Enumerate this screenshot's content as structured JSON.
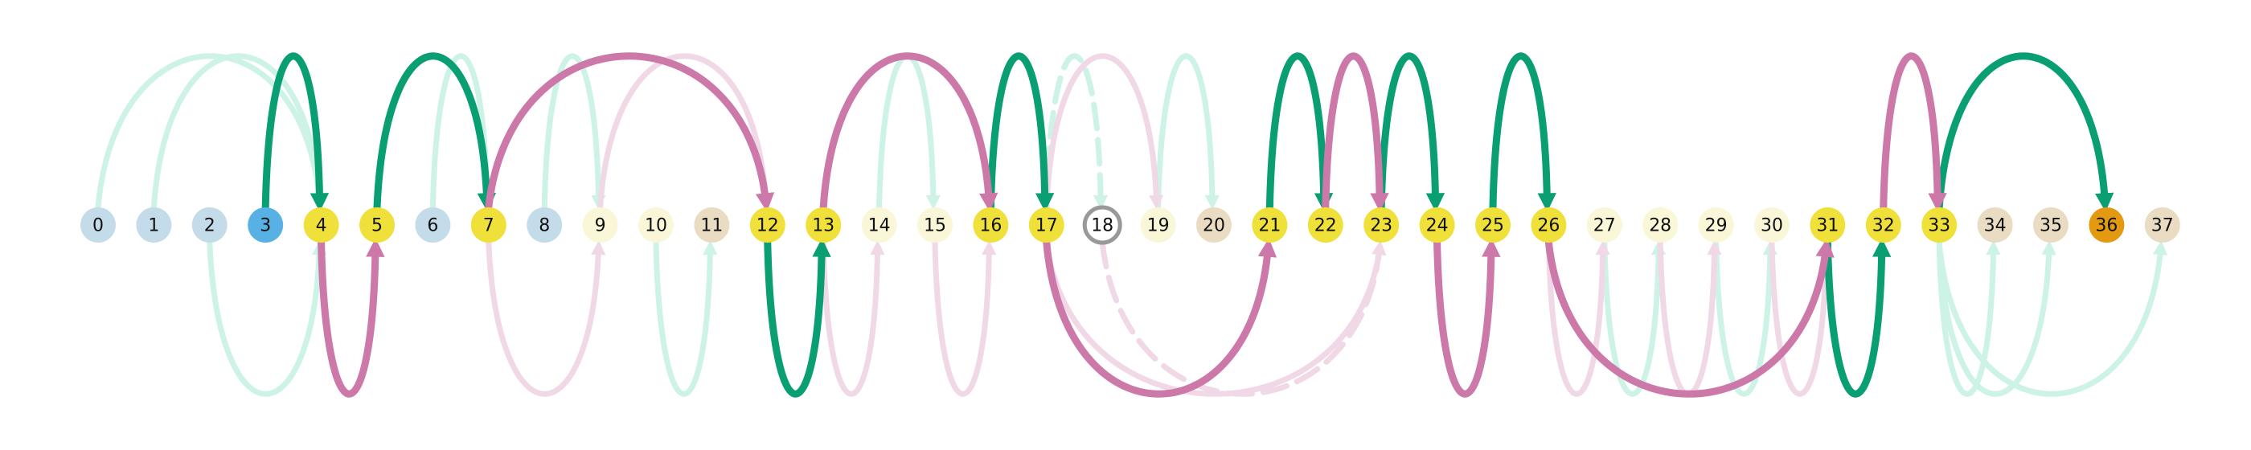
{
  "diagram": {
    "nodes": [
      {
        "label": "0",
        "fill": "#c4dcea"
      },
      {
        "label": "1",
        "fill": "#c4dcea"
      },
      {
        "label": "2",
        "fill": "#c4dcea"
      },
      {
        "label": "3",
        "fill": "#58b1e4"
      },
      {
        "label": "4",
        "fill": "#f0e03a"
      },
      {
        "label": "5",
        "fill": "#f0e03a"
      },
      {
        "label": "6",
        "fill": "#c4dcea"
      },
      {
        "label": "7",
        "fill": "#f0e03a"
      },
      {
        "label": "8",
        "fill": "#c4dcea"
      },
      {
        "label": "9",
        "fill": "#faf6d8"
      },
      {
        "label": "10",
        "fill": "#faf6d8"
      },
      {
        "label": "11",
        "fill": "#eadcc2"
      },
      {
        "label": "12",
        "fill": "#f0e03a"
      },
      {
        "label": "13",
        "fill": "#f0e03a"
      },
      {
        "label": "14",
        "fill": "#faf6d8"
      },
      {
        "label": "15",
        "fill": "#faf6d8"
      },
      {
        "label": "16",
        "fill": "#f0e03a"
      },
      {
        "label": "17",
        "fill": "#f0e03a"
      },
      {
        "label": "18",
        "fill": "#ffffff",
        "stroke": "#999999"
      },
      {
        "label": "19",
        "fill": "#faf6d8"
      },
      {
        "label": "20",
        "fill": "#eadcc2"
      },
      {
        "label": "21",
        "fill": "#f0e03a"
      },
      {
        "label": "22",
        "fill": "#f0e03a"
      },
      {
        "label": "23",
        "fill": "#f0e03a"
      },
      {
        "label": "24",
        "fill": "#f0e03a"
      },
      {
        "label": "25",
        "fill": "#f0e03a"
      },
      {
        "label": "26",
        "fill": "#f0e03a"
      },
      {
        "label": "27",
        "fill": "#faf6d8"
      },
      {
        "label": "28",
        "fill": "#faf6d8"
      },
      {
        "label": "29",
        "fill": "#faf6d8"
      },
      {
        "label": "30",
        "fill": "#faf6d8"
      },
      {
        "label": "31",
        "fill": "#f0e03a"
      },
      {
        "label": "32",
        "fill": "#f0e03a"
      },
      {
        "label": "33",
        "fill": "#f0e03a"
      },
      {
        "label": "34",
        "fill": "#eadcc2"
      },
      {
        "label": "35",
        "fill": "#eadcc2"
      },
      {
        "label": "36",
        "fill": "#e39a10"
      },
      {
        "label": "37",
        "fill": "#eadcc2"
      }
    ],
    "colors": {
      "green": "#0a9e73",
      "pink": "#cc78a8",
      "light_green": "#cdf2e6",
      "light_pink": "#f0d8e6"
    },
    "edges": [
      {
        "from": 0,
        "to": 4,
        "side": "top",
        "style": "light_green"
      },
      {
        "from": 1,
        "to": 4,
        "side": "top",
        "style": "light_green"
      },
      {
        "from": 2,
        "to": 4,
        "side": "bottom",
        "style": "light_green"
      },
      {
        "from": 6,
        "to": 7,
        "side": "top",
        "style": "light_green"
      },
      {
        "from": 8,
        "to": 9,
        "side": "top",
        "style": "light_green"
      },
      {
        "from": 10,
        "to": 11,
        "side": "bottom",
        "style": "light_green"
      },
      {
        "from": 14,
        "to": 15,
        "side": "top",
        "style": "light_green"
      },
      {
        "from": 17,
        "to": 18,
        "side": "top",
        "style": "light_green",
        "dashed": true
      },
      {
        "from": 19,
        "to": 20,
        "side": "top",
        "style": "light_green"
      },
      {
        "from": 27,
        "to": 28,
        "side": "bottom",
        "style": "light_green"
      },
      {
        "from": 29,
        "to": 30,
        "side": "bottom",
        "style": "light_green"
      },
      {
        "from": 33,
        "to": 34,
        "side": "bottom",
        "style": "light_green"
      },
      {
        "from": 33,
        "to": 35,
        "side": "bottom",
        "style": "light_green"
      },
      {
        "from": 33,
        "to": 37,
        "side": "bottom",
        "style": "light_green"
      },
      {
        "from": 7,
        "to": 9,
        "side": "bottom",
        "style": "light_pink"
      },
      {
        "from": 9,
        "to": 12,
        "side": "top",
        "style": "light_pink"
      },
      {
        "from": 13,
        "to": 14,
        "side": "bottom",
        "style": "light_pink"
      },
      {
        "from": 15,
        "to": 16,
        "side": "bottom",
        "style": "light_pink"
      },
      {
        "from": 17,
        "to": 19,
        "side": "top",
        "style": "light_pink"
      },
      {
        "from": 17,
        "to": 23,
        "side": "bottom",
        "style": "light_pink"
      },
      {
        "from": 18,
        "to": 23,
        "side": "bottom",
        "style": "light_pink",
        "dashed": true
      },
      {
        "from": 26,
        "to": 27,
        "side": "bottom",
        "style": "light_pink"
      },
      {
        "from": 28,
        "to": 29,
        "side": "bottom",
        "style": "light_pink"
      },
      {
        "from": 30,
        "to": 31,
        "side": "bottom",
        "style": "light_pink"
      },
      {
        "from": 3,
        "to": 4,
        "side": "top",
        "style": "green"
      },
      {
        "from": 5,
        "to": 7,
        "side": "top",
        "style": "green"
      },
      {
        "from": 12,
        "to": 13,
        "side": "bottom",
        "style": "green"
      },
      {
        "from": 16,
        "to": 17,
        "side": "top",
        "style": "green"
      },
      {
        "from": 21,
        "to": 22,
        "side": "top",
        "style": "green"
      },
      {
        "from": 23,
        "to": 24,
        "side": "top",
        "style": "green"
      },
      {
        "from": 25,
        "to": 26,
        "side": "top",
        "style": "green"
      },
      {
        "from": 31,
        "to": 32,
        "side": "bottom",
        "style": "green"
      },
      {
        "from": 33,
        "to": 36,
        "side": "top",
        "style": "green"
      },
      {
        "from": 4,
        "to": 5,
        "side": "bottom",
        "style": "pink"
      },
      {
        "from": 7,
        "to": 12,
        "side": "top",
        "style": "pink"
      },
      {
        "from": 13,
        "to": 16,
        "side": "top",
        "style": "pink"
      },
      {
        "from": 17,
        "to": 21,
        "side": "bottom",
        "style": "pink"
      },
      {
        "from": 22,
        "to": 23,
        "side": "top",
        "style": "pink"
      },
      {
        "from": 24,
        "to": 25,
        "side": "bottom",
        "style": "pink"
      },
      {
        "from": 26,
        "to": 31,
        "side": "bottom",
        "style": "pink"
      },
      {
        "from": 32,
        "to": 33,
        "side": "top",
        "style": "pink"
      }
    ]
  }
}
